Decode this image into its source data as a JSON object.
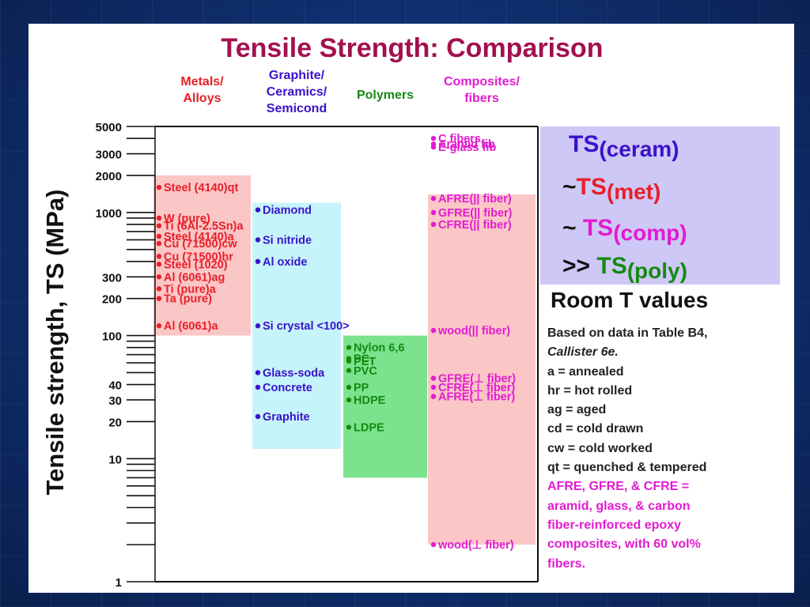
{
  "title": "Tensile Strength: Comparison",
  "chart_data": {
    "type": "range",
    "ylabel": "Tensile strength, TS (MPa)",
    "yscale": "log",
    "ylim": [
      1,
      5000
    ],
    "yticks": [
      {
        "value": 1,
        "label": "1"
      },
      {
        "value": 10,
        "label": "10"
      },
      {
        "value": 20,
        "label": "20"
      },
      {
        "value": 30,
        "label": "30"
      },
      {
        "value": 40,
        "label": "40"
      },
      {
        "value": 100,
        "label": "100"
      },
      {
        "value": 200,
        "label": "200"
      },
      {
        "value": 300,
        "label": "300"
      },
      {
        "value": 1000,
        "label": "1000"
      },
      {
        "value": 2000,
        "label": "2000"
      },
      {
        "value": 3000,
        "label": "3000"
      },
      {
        "value": 5000,
        "label": "5000"
      }
    ],
    "groups": [
      {
        "name": "Metals/ Alloys",
        "name_lines": [
          "Metals/",
          "Alloys"
        ],
        "color": "#e8202a",
        "band": "#fbc6c6",
        "range": [
          100,
          2000
        ],
        "items": [
          {
            "label": "Steel (4140)qt",
            "value": 1600
          },
          {
            "label": "W (pure)",
            "value": 900
          },
          {
            "label": "Ti (6Al-2.5Sn)a",
            "value": 780
          },
          {
            "label": "Steel (4140)a",
            "value": 640
          },
          {
            "label": "Cu (71500)cw",
            "value": 560
          },
          {
            "label": "Cu (71500)hr",
            "value": 440
          },
          {
            "label": "Steel (1020)",
            "value": 380
          },
          {
            "label": "Al (6061)ag",
            "value": 300
          },
          {
            "label": "Ti (pure)a",
            "value": 240
          },
          {
            "label": "Ta (pure)",
            "value": 200
          },
          {
            "label": "Al (6061)a",
            "value": 120
          }
        ]
      },
      {
        "name": "Graphite/ Ceramics/ Semicond",
        "name_lines": [
          "Graphite/",
          "Ceramics/",
          "Semicond"
        ],
        "color": "#3a12c8",
        "band": "#c6f4fb",
        "range": [
          12,
          1200
        ],
        "items": [
          {
            "label": "Diamond",
            "value": 1050
          },
          {
            "label": "Si nitride",
            "value": 600
          },
          {
            "label": "Al oxide",
            "value": 400
          },
          {
            "label": "Si crystal <100>",
            "value": 120
          },
          {
            "label": "Glass-soda",
            "value": 50
          },
          {
            "label": "Concrete",
            "value": 38
          },
          {
            "label": "Graphite",
            "value": 22
          }
        ]
      },
      {
        "name": "Polymers",
        "name_lines": [
          "Polymers"
        ],
        "color": "#158a12",
        "band": "#7be38d",
        "range": [
          7,
          100
        ],
        "items": [
          {
            "label": "Nylon 6,6",
            "value": 80
          },
          {
            "label": "PC",
            "value": 65
          },
          {
            "label": "PET",
            "value": 62
          },
          {
            "label": "PVC",
            "value": 52
          },
          {
            "label": "PP",
            "value": 38
          },
          {
            "label": "HDPE",
            "value": 30
          },
          {
            "label": "LDPE",
            "value": 18
          }
        ]
      },
      {
        "name": "Composites/ fibers",
        "name_lines": [
          "Composites/",
          "fibers"
        ],
        "color": "#e21bd0",
        "band": "#fbc6c6",
        "range": [
          2,
          1400
        ],
        "items": [
          {
            "label": "C fibers",
            "value": 4000
          },
          {
            "label": "Aramid fib",
            "value": 3600
          },
          {
            "label": "E-glass fib",
            "value": 3400
          },
          {
            "label": "AFRE(|| fiber)",
            "value": 1300
          },
          {
            "label": "GFRE(|| fiber)",
            "value": 1000
          },
          {
            "label": "CFRE(|| fiber)",
            "value": 800
          },
          {
            "label": "wood(|| fiber)",
            "value": 110
          },
          {
            "label": "GFRE(⊥ fiber)",
            "value": 45
          },
          {
            "label": "CFRE(⊥ fiber)",
            "value": 38
          },
          {
            "label": "AFRE(⊥ fiber)",
            "value": 32
          },
          {
            "label": "wood(⊥ fiber)",
            "value": 2
          }
        ]
      }
    ]
  },
  "info_box": {
    "line1": {
      "text": "TS",
      "sub": "(ceram)",
      "color": "#3a12c8"
    },
    "line2": {
      "prefix": "~",
      "text": "TS",
      "sub": "(met)",
      "color": "#e8202a"
    },
    "line3": {
      "prefix": "~ ",
      "text": "TS",
      "sub": "(comp)",
      "color": "#e21bd0"
    },
    "line4": {
      "prefix": ">> ",
      "text": "TS",
      "sub": "(poly)",
      "color": "#158a12"
    }
  },
  "room_title": "Room T values",
  "notes": {
    "based": "Based on data in Table B4,",
    "source": "Callister 6e.",
    "abbrev": [
      "a     = annealed",
      "hr   = hot rolled",
      "ag  = aged",
      "cd  = cold drawn",
      "cw  = cold worked",
      "qt   = quenched & tempered"
    ],
    "fre": [
      "AFRE, GFRE, & CFRE =",
      "aramid, glass, & carbon",
      "fiber-reinforced epoxy",
      "composites, with 60 vol%",
      "fibers."
    ]
  }
}
